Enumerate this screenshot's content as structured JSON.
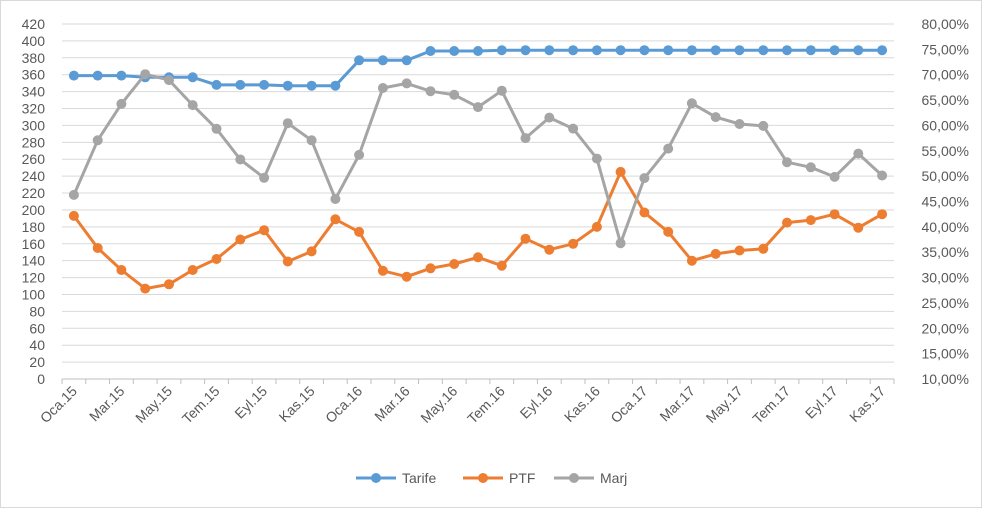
{
  "chart_data": {
    "type": "line",
    "categories": [
      "Oca.15",
      "Şub.15",
      "Mar.15",
      "Nis.15",
      "May.15",
      "Haz.15",
      "Tem.15",
      "Ağu.15",
      "Eyl.15",
      "Eki.15",
      "Kas.15",
      "Ara.15",
      "Oca.16",
      "Şub.16",
      "Mar.16",
      "Nis.16",
      "May.16",
      "Haz.16",
      "Tem.16",
      "Ağu.16",
      "Eyl.16",
      "Eki.16",
      "Kas.16",
      "Ara.16",
      "Oca.17",
      "Şub.17",
      "Mar.17",
      "Nis.17",
      "May.17",
      "Haz.17",
      "Tem.17",
      "Ağu.17",
      "Eyl.17",
      "Eki.17",
      "Kas.17"
    ],
    "x_tick_labels": [
      "Oca.15",
      "Mar.15",
      "May.15",
      "Tem.15",
      "Eyl.15",
      "Kas.15",
      "Oca.16",
      "Mar.16",
      "May.16",
      "Tem.16",
      "Eyl.16",
      "Kas.16",
      "Oca.17",
      "Mar.17",
      "May.17",
      "Tem.17",
      "Eyl.17",
      "Kas.17"
    ],
    "series": [
      {
        "name": "Tarife",
        "axis": "left",
        "color": "#5b9bd5",
        "values": [
          359,
          359,
          359,
          357,
          357,
          357,
          348,
          348,
          348,
          347,
          347,
          347,
          377,
          377,
          377,
          388,
          388,
          388,
          389,
          389,
          389,
          389,
          389,
          389,
          389,
          389,
          389,
          389,
          389,
          389,
          389,
          389,
          389,
          389,
          389
        ]
      },
      {
        "name": "PTF",
        "axis": "left",
        "color": "#ed7d31",
        "values": [
          193,
          155,
          129,
          107,
          112,
          129,
          142,
          165,
          176,
          139,
          151,
          189,
          174,
          128,
          121,
          131,
          136,
          144,
          134,
          166,
          153,
          160,
          180,
          245,
          197,
          174,
          140,
          148,
          152,
          154,
          185,
          188,
          195,
          179,
          195
        ]
      },
      {
        "name": "Marj",
        "axis": "right",
        "color": "#a5a5a5",
        "values": [
          0.463,
          0.5706,
          0.6424,
          0.7011,
          0.6893,
          0.6401,
          0.5933,
          0.5328,
          0.4967,
          0.6043,
          0.5706,
          0.4549,
          0.5418,
          0.6738,
          0.6828,
          0.6675,
          0.6603,
          0.6361,
          0.6685,
          0.5751,
          0.6154,
          0.5938,
          0.5346,
          0.3678,
          0.4961,
          0.5544,
          0.6437,
          0.6164,
          0.6029,
          0.599,
          0.5274,
          0.5175,
          0.4985,
          0.5445,
          0.5013
        ]
      }
    ],
    "y_left": {
      "min": 0,
      "max": 420,
      "step": 20,
      "tick_labels": [
        "0",
        "20",
        "40",
        "60",
        "80",
        "100",
        "120",
        "140",
        "160",
        "180",
        "200",
        "220",
        "240",
        "260",
        "280",
        "300",
        "320",
        "340",
        "360",
        "380",
        "400",
        "420"
      ]
    },
    "y_right": {
      "min": 0.1,
      "max": 0.8,
      "step": 0.05,
      "tick_labels": [
        "10,00%",
        "15,00%",
        "20,00%",
        "25,00%",
        "30,00%",
        "35,00%",
        "40,00%",
        "45,00%",
        "50,00%",
        "55,00%",
        "60,00%",
        "65,00%",
        "70,00%",
        "75,00%",
        "80,00%"
      ]
    },
    "title": "",
    "xlabel": "",
    "ylabel": "",
    "grid": true,
    "legend_position": "bottom",
    "legend": [
      "Tarife",
      "PTF",
      "Marj"
    ],
    "colors": {
      "grid": "#d9d9d9",
      "axis": "#bfbfbf",
      "tick_text": "#595959"
    }
  }
}
